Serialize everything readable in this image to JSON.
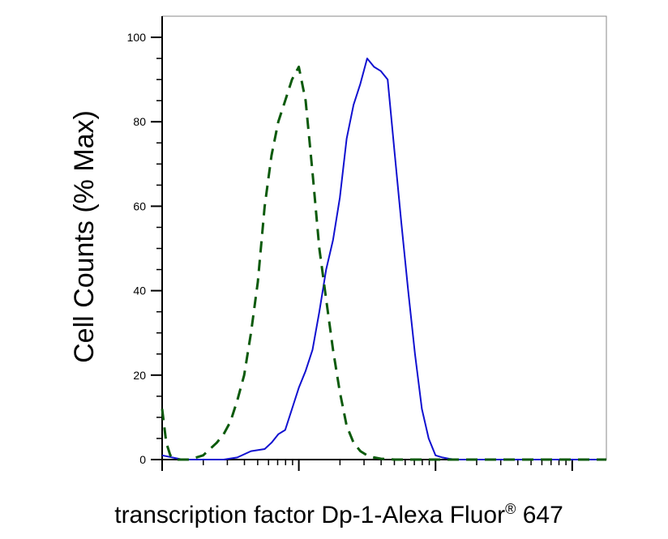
{
  "chart_data": {
    "type": "line",
    "title": "",
    "xlabel": "transcription factor Dp-1-Alexa Fluor",
    "xlabel_superscript": "®",
    "xlabel_suffix": " 647",
    "ylabel": "Cell Counts (% Max)",
    "xscale": "log",
    "ylim": [
      0,
      105
    ],
    "yticks": [
      0,
      20,
      40,
      60,
      80,
      100
    ],
    "ytick_labels": [
      "0",
      "20",
      "40",
      "60",
      "80",
      "100"
    ],
    "grid": false,
    "legend": "none",
    "x_decade_ticks_count": 4,
    "series": [
      {
        "color": "#1010d0",
        "style": "solid",
        "x": [
          0.0,
          0.15,
          0.3,
          0.45,
          0.55,
          0.65,
          0.75,
          0.8,
          0.85,
          0.9,
          0.95,
          1.0,
          1.05,
          1.1,
          1.15,
          1.2,
          1.25,
          1.3,
          1.35,
          1.4,
          1.45,
          1.5,
          1.55,
          1.6,
          1.65,
          1.7,
          1.75,
          1.8,
          1.85,
          1.9,
          1.95,
          2.0,
          2.05,
          2.1,
          2.15,
          2.2,
          2.25,
          2.3,
          2.35,
          2.4,
          2.5,
          2.6,
          2.8,
          3.0,
          3.2,
          3.25
        ],
        "y": [
          1,
          0,
          0,
          0,
          0.5,
          2,
          2.5,
          4,
          6,
          7,
          12,
          17,
          21,
          26,
          35,
          45,
          52,
          62,
          76,
          84,
          89,
          95,
          93,
          92,
          90,
          73,
          56,
          40,
          25,
          12,
          5,
          1,
          0.5,
          0.2,
          0,
          0,
          0,
          0,
          0,
          0,
          0,
          0,
          0,
          0,
          0,
          0
        ]
      },
      {
        "color": "#0b5a0b",
        "style": "dashed",
        "x": [
          0.0,
          0.03,
          0.06,
          0.1,
          0.15,
          0.2,
          0.3,
          0.4,
          0.45,
          0.5,
          0.55,
          0.6,
          0.65,
          0.7,
          0.75,
          0.8,
          0.85,
          0.9,
          0.95,
          1.0,
          1.05,
          1.1,
          1.15,
          1.2,
          1.25,
          1.3,
          1.35,
          1.4,
          1.45,
          1.5,
          1.55,
          1.6,
          1.7,
          1.8,
          1.9,
          2.0,
          2.2,
          2.5,
          3.0,
          3.25
        ],
        "y": [
          12,
          4,
          1,
          0,
          0,
          0,
          1,
          4,
          6,
          9,
          14,
          20,
          30,
          42,
          60,
          72,
          80,
          85,
          90,
          93,
          85,
          68,
          50,
          38,
          26,
          16,
          8,
          4,
          2,
          1,
          0.5,
          0.2,
          0,
          0,
          0,
          0,
          0,
          0,
          0,
          0
        ]
      }
    ]
  }
}
